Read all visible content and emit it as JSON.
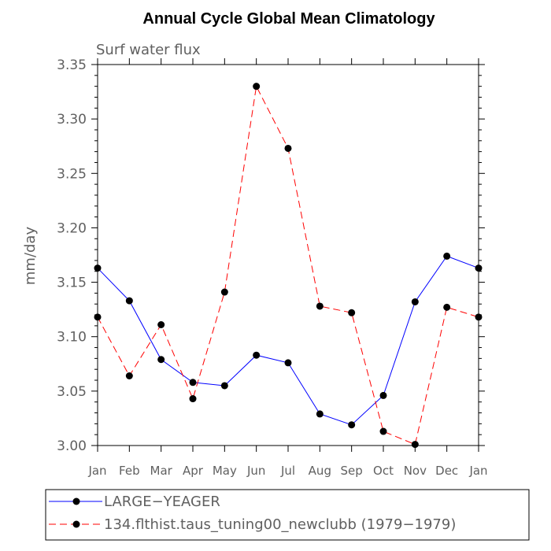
{
  "chart_data": {
    "type": "line",
    "title": "Annual Cycle Global Mean Climatology",
    "subtitle": "Surf water flux",
    "xlabel": "",
    "ylabel": "mm/day",
    "categories": [
      "Jan",
      "Feb",
      "Mar",
      "Apr",
      "May",
      "Jun",
      "Jul",
      "Aug",
      "Sep",
      "Oct",
      "Nov",
      "Dec",
      "Jan"
    ],
    "ylim": [
      3.0,
      3.35
    ],
    "yticks": [
      "3.00",
      "3.05",
      "3.10",
      "3.15",
      "3.20",
      "3.25",
      "3.30",
      "3.35"
    ],
    "ytick_values": [
      3.0,
      3.05,
      3.1,
      3.15,
      3.2,
      3.25,
      3.3,
      3.35
    ],
    "series": [
      {
        "name": "LARGE−YEAGER",
        "color": "#0000ff",
        "dash": "solid",
        "values": [
          3.163,
          3.133,
          3.079,
          3.058,
          3.055,
          3.083,
          3.076,
          3.029,
          3.019,
          3.046,
          3.132,
          3.174,
          3.163
        ]
      },
      {
        "name": "134.flthist.taus_tuning00_newclubb (1979−1979)",
        "color": "#ff0000",
        "dash": "dashed",
        "values": [
          3.118,
          3.064,
          3.111,
          3.043,
          3.141,
          3.33,
          3.273,
          3.128,
          3.122,
          3.013,
          3.001,
          3.127,
          3.118
        ]
      }
    ],
    "legend_position": "bottom"
  }
}
